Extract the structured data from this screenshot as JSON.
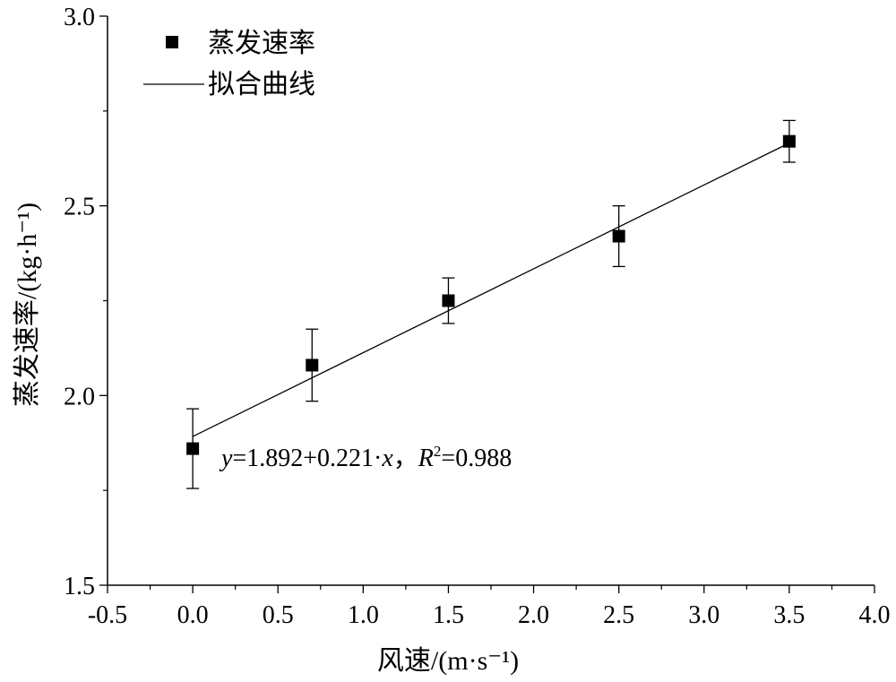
{
  "chart_data": {
    "type": "scatter",
    "xlabel": "风速/(m·s⁻¹)",
    "ylabel": "蒸发速率/(kg·h⁻¹)",
    "xlim": [
      -0.5,
      4.0
    ],
    "ylim": [
      1.5,
      3.0
    ],
    "xticks": [
      "-0.5",
      "0.0",
      "0.5",
      "1.0",
      "1.5",
      "2.0",
      "2.5",
      "3.0",
      "3.5",
      "4.0"
    ],
    "yticks": [
      "1.5",
      "2.0",
      "2.5",
      "3.0"
    ],
    "grid": false,
    "legend_position": "top-left",
    "series": [
      {
        "name": "蒸发速率",
        "marker": "square",
        "color": "#000000",
        "x": [
          0.0,
          0.7,
          1.5,
          2.5,
          3.5
        ],
        "y": [
          1.86,
          2.08,
          2.25,
          2.42,
          2.67
        ],
        "error": [
          0.105,
          0.095,
          0.06,
          0.08,
          0.055
        ]
      },
      {
        "name": "拟合曲线",
        "type": "line",
        "color": "#000000",
        "x": [
          0.0,
          3.5
        ],
        "y": [
          1.892,
          2.6655
        ]
      }
    ],
    "annotation": {
      "y_var": "y",
      "eq_body": "=1.892+0.221·",
      "x_var": "x",
      "sep": "，",
      "r_var": "R",
      "r_sup": "2",
      "r_val": "=0.988"
    }
  }
}
